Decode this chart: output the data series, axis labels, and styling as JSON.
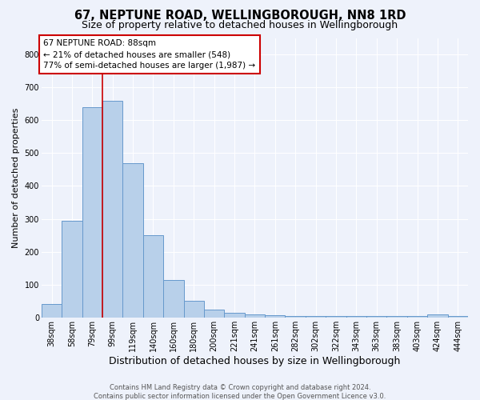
{
  "title": "67, NEPTUNE ROAD, WELLINGBOROUGH, NN8 1RD",
  "subtitle": "Size of property relative to detached houses in Wellingborough",
  "xlabel": "Distribution of detached houses by size in Wellingborough",
  "ylabel": "Number of detached properties",
  "categories": [
    "38sqm",
    "58sqm",
    "79sqm",
    "99sqm",
    "119sqm",
    "140sqm",
    "160sqm",
    "180sqm",
    "200sqm",
    "221sqm",
    "241sqm",
    "261sqm",
    "282sqm",
    "302sqm",
    "322sqm",
    "343sqm",
    "363sqm",
    "383sqm",
    "403sqm",
    "424sqm",
    "444sqm"
  ],
  "values": [
    40,
    295,
    640,
    660,
    470,
    250,
    115,
    50,
    25,
    15,
    10,
    8,
    5,
    5,
    5,
    5,
    5,
    5,
    5,
    10,
    5
  ],
  "bar_color": "#b8d0ea",
  "bar_edge_color": "#6699cc",
  "bar_edge_width": 0.7,
  "red_line_x": 2.5,
  "property_label": "67 NEPTUNE ROAD: 88sqm",
  "annotation_line1": "← 21% of detached houses are smaller (548)",
  "annotation_line2": "77% of semi-detached houses are larger (1,987) →",
  "annotation_box_facecolor": "#ffffff",
  "annotation_box_edgecolor": "#cc0000",
  "ylim": [
    0,
    850
  ],
  "yticks": [
    0,
    100,
    200,
    300,
    400,
    500,
    600,
    700,
    800
  ],
  "bg_color": "#eef2fb",
  "grid_color": "#ffffff",
  "red_line_color": "#cc0000",
  "footer_line1": "Contains HM Land Registry data © Crown copyright and database right 2024.",
  "footer_line2": "Contains public sector information licensed under the Open Government Licence v3.0.",
  "title_fontsize": 10.5,
  "subtitle_fontsize": 9,
  "xlabel_fontsize": 9,
  "ylabel_fontsize": 8,
  "tick_fontsize": 7,
  "annotation_fontsize": 7.5,
  "footer_fontsize": 6
}
